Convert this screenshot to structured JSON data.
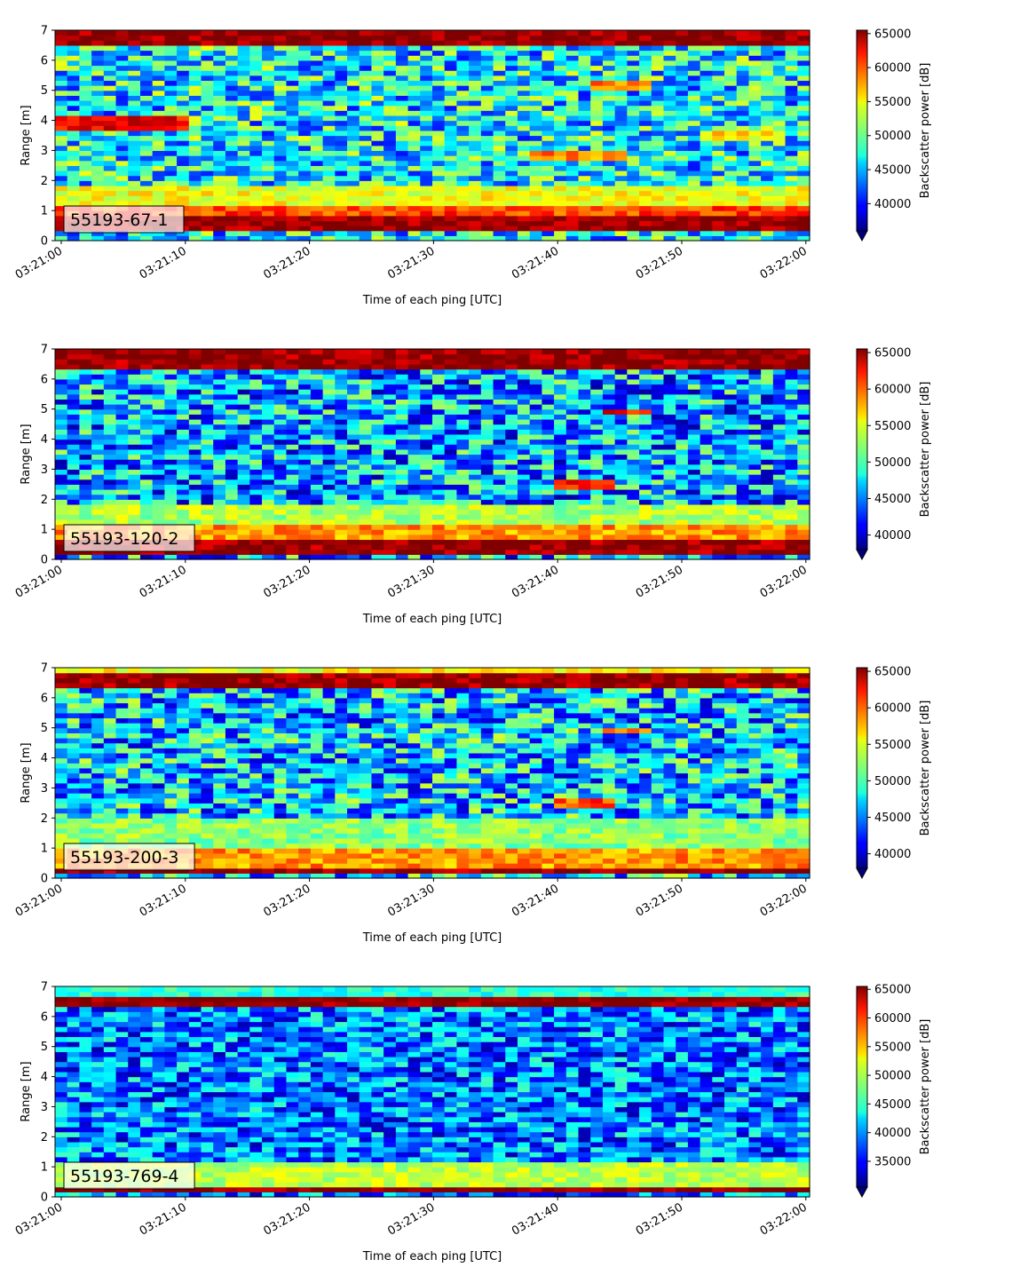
{
  "chart_data": [
    {
      "type": "heatmap",
      "label": "55193-67-1",
      "xlabel": "Time of each ping [UTC]",
      "ylabel": "Range [m]",
      "colorbar_label": "Backscatter power [dB]",
      "x_range": [
        "03:21:00",
        "03:22:00"
      ],
      "x_ticks": [
        "03:21:00",
        "03:21:10",
        "03:21:20",
        "03:21:30",
        "03:21:40",
        "03:21:50",
        "03:22:00"
      ],
      "y_range": [
        0,
        7
      ],
      "y_ticks": [
        "0",
        "1",
        "2",
        "3",
        "4",
        "5",
        "6",
        "7"
      ],
      "colorbar_range": [
        36000,
        65500
      ],
      "colorbar_ticks": [
        "40000",
        "45000",
        "50000",
        "55000",
        "60000",
        "65000"
      ],
      "colormap": "jet",
      "bands": [
        {
          "range": [
            0.3,
            0.9
          ],
          "value": 65000,
          "time_span": [
            "03:21:00",
            "03:22:00"
          ]
        },
        {
          "range": [
            0.9,
            1.2
          ],
          "value": 60000,
          "time_span": [
            "03:21:00",
            "03:22:00"
          ]
        },
        {
          "range": [
            1.2,
            1.8
          ],
          "value": 54000,
          "time_span": [
            "03:21:00",
            "03:22:00"
          ]
        },
        {
          "range": [
            3.6,
            4.1
          ],
          "value": 62000,
          "time_span": [
            "03:21:00",
            "03:21:10"
          ]
        },
        {
          "range": [
            2.7,
            3.0
          ],
          "value": 58000,
          "time_span": [
            "03:21:38",
            "03:21:45"
          ]
        },
        {
          "range": [
            5.0,
            5.3
          ],
          "value": 58000,
          "time_span": [
            "03:21:43",
            "03:21:47"
          ]
        },
        {
          "range": [
            3.3,
            3.6
          ],
          "value": 55000,
          "time_span": [
            "03:21:52",
            "03:21:58"
          ]
        },
        {
          "range": [
            6.5,
            7.0
          ],
          "value": 65000,
          "time_span": [
            "03:21:00",
            "03:22:00"
          ]
        }
      ],
      "background_value": 47000
    },
    {
      "type": "heatmap",
      "label": "55193-120-2",
      "xlabel": "Time of each ping [UTC]",
      "ylabel": "Range [m]",
      "colorbar_label": "Backscatter power [dB]",
      "x_range": [
        "03:21:00",
        "03:22:00"
      ],
      "x_ticks": [
        "03:21:00",
        "03:21:10",
        "03:21:20",
        "03:21:30",
        "03:21:40",
        "03:21:50",
        "03:22:00"
      ],
      "y_range": [
        0,
        7
      ],
      "y_ticks": [
        "0",
        "1",
        "2",
        "3",
        "4",
        "5",
        "6",
        "7"
      ],
      "colorbar_range": [
        38000,
        65500
      ],
      "colorbar_ticks": [
        "40000",
        "45000",
        "50000",
        "55000",
        "60000",
        "65000"
      ],
      "colormap": "jet",
      "bands": [
        {
          "range": [
            0.2,
            0.7
          ],
          "value": 65000,
          "time_span": [
            "03:21:00",
            "03:22:00"
          ]
        },
        {
          "range": [
            0.7,
            1.1
          ],
          "value": 58000,
          "time_span": [
            "03:21:00",
            "03:22:00"
          ]
        },
        {
          "range": [
            1.1,
            1.8
          ],
          "value": 53000,
          "time_span": [
            "03:21:00",
            "03:22:00"
          ]
        },
        {
          "range": [
            2.4,
            2.7
          ],
          "value": 62000,
          "time_span": [
            "03:21:40",
            "03:21:44"
          ]
        },
        {
          "range": [
            4.8,
            5.0
          ],
          "value": 62000,
          "time_span": [
            "03:21:44",
            "03:21:47"
          ]
        },
        {
          "range": [
            6.4,
            7.0
          ],
          "value": 65000,
          "time_span": [
            "03:21:00",
            "03:22:00"
          ]
        }
      ],
      "background_value": 46000
    },
    {
      "type": "heatmap",
      "label": "55193-200-3",
      "xlabel": "Time of each ping [UTC]",
      "ylabel": "Range [m]",
      "colorbar_label": "Backscatter power [dB]",
      "x_range": [
        "03:21:00",
        "03:22:00"
      ],
      "x_ticks": [
        "03:21:00",
        "03:21:10",
        "03:21:20",
        "03:21:30",
        "03:21:40",
        "03:21:50",
        "03:22:00"
      ],
      "y_range": [
        0,
        7
      ],
      "y_ticks": [
        "0",
        "1",
        "2",
        "3",
        "4",
        "5",
        "6",
        "7"
      ],
      "colorbar_range": [
        38000,
        65500
      ],
      "colorbar_ticks": [
        "40000",
        "45000",
        "50000",
        "55000",
        "60000",
        "65000"
      ],
      "colormap": "jet",
      "bands": [
        {
          "range": [
            0.1,
            0.4
          ],
          "value": 65000,
          "time_span": [
            "03:21:00",
            "03:22:00"
          ]
        },
        {
          "range": [
            0.4,
            1.0
          ],
          "value": 58000,
          "time_span": [
            "03:21:00",
            "03:22:00"
          ]
        },
        {
          "range": [
            1.0,
            2.0
          ],
          "value": 52000,
          "time_span": [
            "03:21:00",
            "03:22:00"
          ]
        },
        {
          "range": [
            2.4,
            2.7
          ],
          "value": 60000,
          "time_span": [
            "03:21:40",
            "03:21:44"
          ]
        },
        {
          "range": [
            4.8,
            5.0
          ],
          "value": 58000,
          "time_span": [
            "03:21:44",
            "03:21:47"
          ]
        },
        {
          "range": [
            6.3,
            6.9
          ],
          "value": 65000,
          "time_span": [
            "03:21:00",
            "03:22:00"
          ]
        },
        {
          "range": [
            6.9,
            7.0
          ],
          "value": 55000,
          "time_span": [
            "03:21:00",
            "03:22:00"
          ]
        }
      ],
      "background_value": 47000
    },
    {
      "type": "heatmap",
      "label": "55193-769-4",
      "xlabel": "Time of each ping [UTC]",
      "ylabel": "Range [m]",
      "colorbar_label": "Backscatter power [dB]",
      "x_range": [
        "03:21:00",
        "03:22:00"
      ],
      "x_ticks": [
        "03:21:00",
        "03:21:10",
        "03:21:20",
        "03:21:30",
        "03:21:40",
        "03:21:50",
        "03:22:00"
      ],
      "y_range": [
        0,
        7
      ],
      "y_ticks": [
        "0",
        "1",
        "2",
        "3",
        "4",
        "5",
        "6",
        "7"
      ],
      "colorbar_range": [
        30500,
        65500
      ],
      "colorbar_ticks": [
        "35000",
        "40000",
        "45000",
        "50000",
        "55000",
        "60000",
        "65000"
      ],
      "colormap": "jet",
      "bands": [
        {
          "range": [
            0.2,
            0.4
          ],
          "value": 65000,
          "time_span": [
            "03:21:00",
            "03:22:00"
          ]
        },
        {
          "range": [
            0.4,
            1.2
          ],
          "value": 50000,
          "time_span": [
            "03:21:00",
            "03:22:00"
          ]
        },
        {
          "range": [
            6.3,
            6.6
          ],
          "value": 65000,
          "time_span": [
            "03:21:00",
            "03:22:00"
          ]
        },
        {
          "range": [
            6.6,
            7.0
          ],
          "value": 45000,
          "time_span": [
            "03:21:00",
            "03:22:00"
          ]
        }
      ],
      "background_value": 39000
    }
  ]
}
